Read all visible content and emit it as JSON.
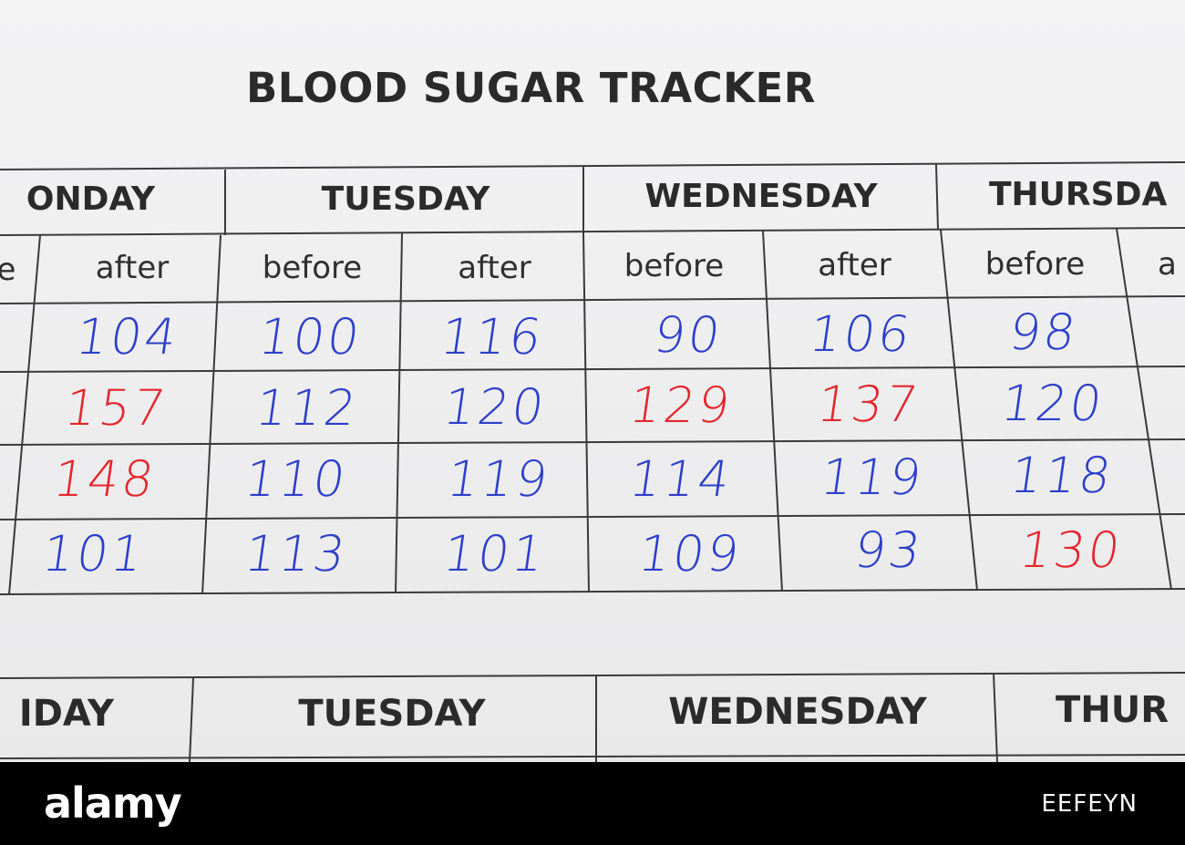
{
  "title": "BLOOD SUGAR TRACKER",
  "days": [
    "ONDAY",
    "TUESDAY",
    "WEDNESDAY",
    "THURSDA"
  ],
  "lower_days": [
    "IDAY",
    "TUESDAY",
    "WEDNESDAY",
    "THUR"
  ],
  "subheaders": [
    "e",
    "after",
    "before",
    "after",
    "before",
    "after",
    "before",
    "a"
  ],
  "rows": [
    [
      "104",
      "100",
      "116",
      "90",
      "106",
      "98"
    ],
    [
      "157",
      "112",
      "120",
      "129",
      "137",
      "120"
    ],
    [
      "148",
      "110",
      "119",
      "114",
      "119",
      "118"
    ],
    [
      "101",
      "113",
      "101",
      "109",
      "93",
      "130"
    ]
  ],
  "colors": {
    "blue_ink": "#2d3fc9",
    "red_ink": "#e4262c",
    "row_colors": [
      [
        "blue",
        "blue",
        "blue",
        "blue",
        "blue",
        "blue"
      ],
      [
        "red",
        "blue",
        "blue",
        "red",
        "red",
        "blue"
      ],
      [
        "red",
        "blue",
        "blue",
        "blue",
        "blue",
        "blue"
      ],
      [
        "blue",
        "blue",
        "blue",
        "blue",
        "blue",
        "red"
      ]
    ]
  },
  "watermark": {
    "logo": "alamy",
    "image_id": "EEFEYN"
  }
}
